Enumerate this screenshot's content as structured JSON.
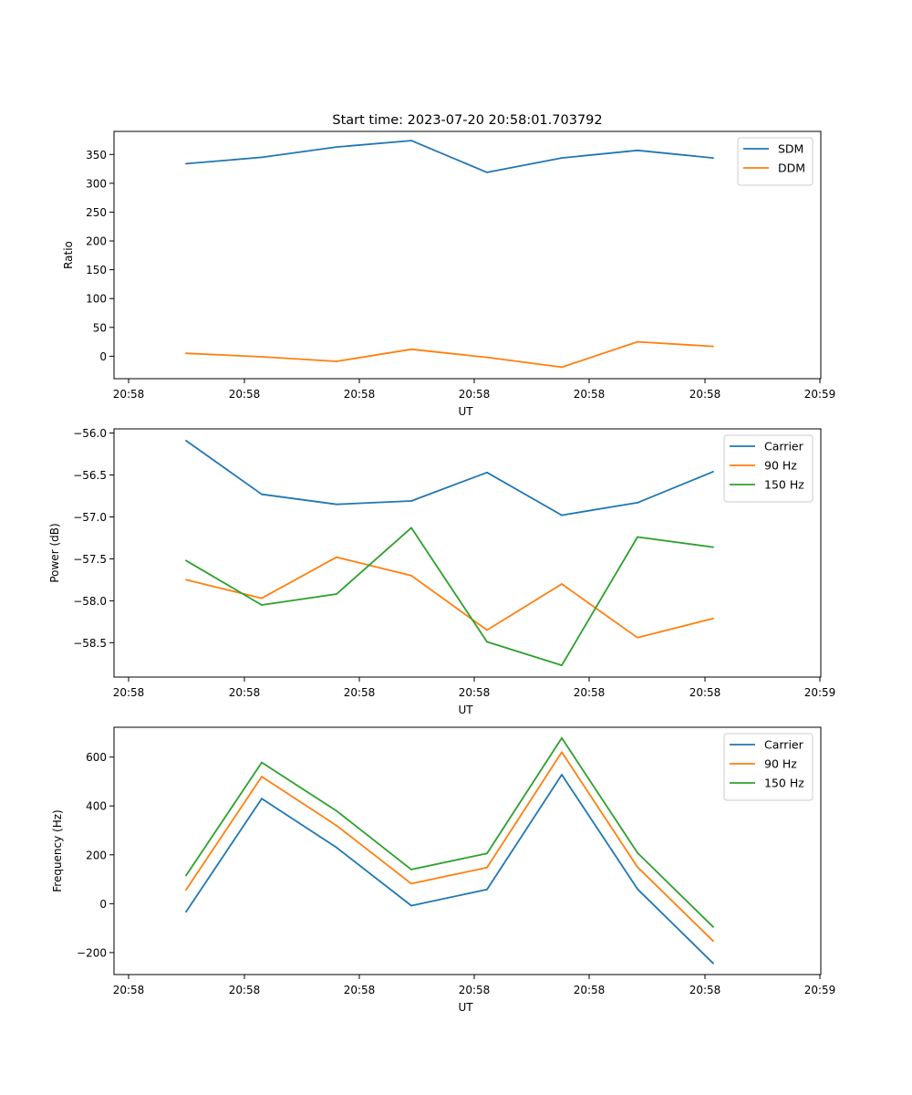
{
  "chart_data": [
    {
      "type": "line",
      "title": "Start time: 2023-07-20 20:58:01.703792",
      "xlabel": "UT",
      "ylabel": "Ratio",
      "xticks": [
        "20:58",
        "20:58",
        "20:58",
        "20:58",
        "20:58",
        "20:58",
        "20:59"
      ],
      "yticks": [
        0,
        50,
        100,
        150,
        200,
        250,
        300,
        350
      ],
      "ylim": [
        -39,
        390
      ],
      "legend": "top-right",
      "series": [
        {
          "name": "SDM",
          "color": "#1f77b4",
          "values": [
            334,
            345,
            363,
            374,
            319,
            344,
            357,
            344
          ]
        },
        {
          "name": "DDM",
          "color": "#ff7f0e",
          "values": [
            5,
            -1,
            -9,
            12,
            -2,
            -19,
            25,
            17
          ]
        }
      ]
    },
    {
      "type": "line",
      "title": "",
      "xlabel": "UT",
      "ylabel": "Power (dB)",
      "xticks": [
        "20:58",
        "20:58",
        "20:58",
        "20:58",
        "20:58",
        "20:58",
        "20:59"
      ],
      "yticks": [
        -56.0,
        -56.5,
        -57.0,
        -57.5,
        -58.0,
        -58.5
      ],
      "ylim": [
        -58.91,
        -55.95
      ],
      "legend": "top-right",
      "series": [
        {
          "name": "Carrier",
          "color": "#1f77b4",
          "values": [
            -56.09,
            -56.73,
            -56.85,
            -56.81,
            -56.47,
            -56.98,
            -56.83,
            -56.46
          ]
        },
        {
          "name": "90 Hz",
          "color": "#ff7f0e",
          "values": [
            -57.75,
            -57.97,
            -57.48,
            -57.7,
            -58.35,
            -57.8,
            -58.44,
            -58.21
          ]
        },
        {
          "name": "150 Hz",
          "color": "#2ca02c",
          "values": [
            -57.52,
            -58.05,
            -57.92,
            -57.13,
            -58.49,
            -58.77,
            -57.24,
            -57.36
          ]
        }
      ]
    },
    {
      "type": "line",
      "title": "",
      "xlabel": "UT",
      "ylabel": "Frequency (Hz)",
      "xticks": [
        "20:58",
        "20:58",
        "20:58",
        "20:58",
        "20:58",
        "20:58",
        "20:59"
      ],
      "yticks": [
        -200,
        0,
        200,
        400,
        600
      ],
      "ylim": [
        -290,
        722
      ],
      "legend": "top-right",
      "series": [
        {
          "name": "Carrier",
          "color": "#1f77b4",
          "values": [
            -33,
            430,
            230,
            -8,
            58,
            528,
            60,
            -244
          ]
        },
        {
          "name": "90 Hz",
          "color": "#ff7f0e",
          "values": [
            57,
            520,
            320,
            82,
            148,
            620,
            150,
            -153
          ]
        },
        {
          "name": "150 Hz",
          "color": "#2ca02c",
          "values": [
            115,
            578,
            380,
            140,
            206,
            678,
            208,
            -95
          ]
        }
      ]
    }
  ]
}
